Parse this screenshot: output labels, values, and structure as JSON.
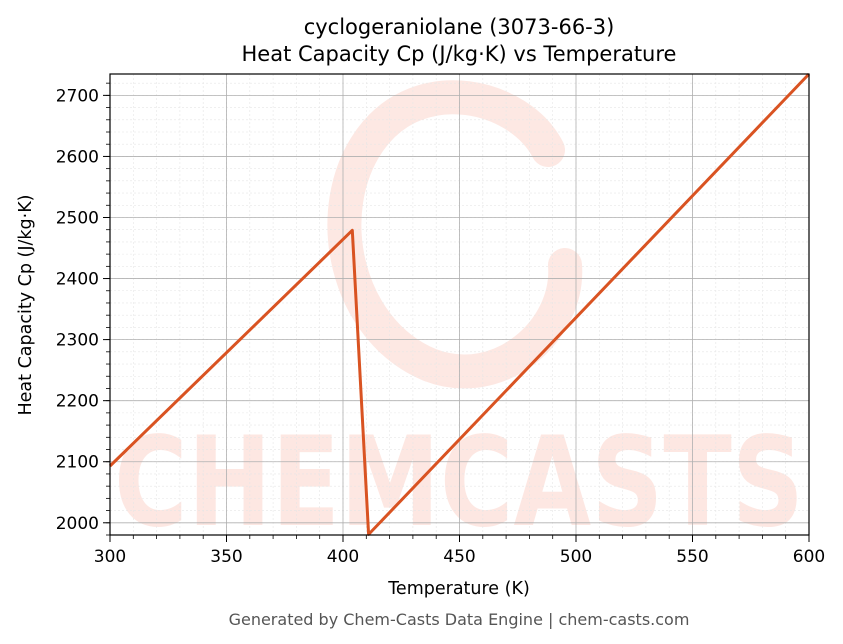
{
  "chart_data": {
    "type": "line",
    "title_line1": "cyclogeraniolane (3073-66-3)",
    "title_line2": "Heat Capacity Cp (J/kg·K) vs Temperature",
    "xlabel": "Temperature (K)",
    "ylabel": "Heat Capacity Cp (J/kg·K)",
    "xlim": [
      300,
      600
    ],
    "ylim": [
      1980,
      2735
    ],
    "xticks": [
      300,
      350,
      400,
      450,
      500,
      550,
      600
    ],
    "yticks": [
      2000,
      2100,
      2200,
      2300,
      2400,
      2500,
      2600,
      2700
    ],
    "grid": true,
    "series": [
      {
        "x": [
          300,
          404,
          411,
          600
        ],
        "y": [
          2093,
          2479,
          1981,
          2735
        ],
        "color": "#d95322"
      }
    ]
  },
  "watermark": {
    "text": "CHEMCASTS",
    "color": "#fcd5cc"
  },
  "footer": "Generated by Chem-Casts Data Engine | chem-casts.com"
}
